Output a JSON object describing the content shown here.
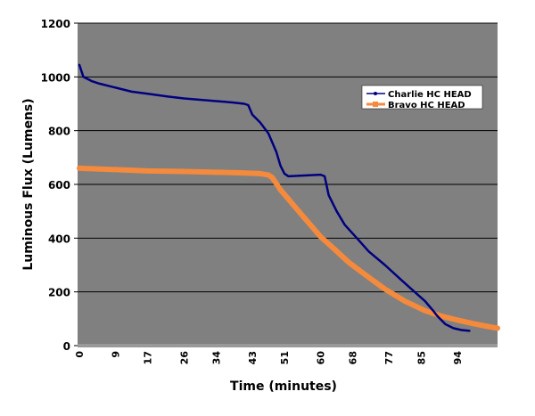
{
  "chart_data": {
    "type": "line",
    "title": "",
    "xlabel": "Time (minutes)",
    "ylabel": "Luminous Flux (Lumens)",
    "xlim": [
      0,
      104
    ],
    "ylim": [
      0,
      1200
    ],
    "x_tick_labels": [
      "0",
      "9",
      "17",
      "26",
      "34",
      "43",
      "51",
      "60",
      "68",
      "77",
      "85",
      "94"
    ],
    "y_tick_labels": [
      "0",
      "200",
      "400",
      "600",
      "800",
      "1000",
      "1200"
    ],
    "grid": "horizontal",
    "legend_position": "top-right",
    "plot_background": "#808080",
    "series": [
      {
        "name": "Charlie HC HEAD",
        "color": "#000080",
        "points": [
          [
            0,
            1045
          ],
          [
            1,
            1000
          ],
          [
            3,
            985
          ],
          [
            5,
            975
          ],
          [
            9,
            960
          ],
          [
            13,
            945
          ],
          [
            17,
            937
          ],
          [
            22,
            927
          ],
          [
            26,
            920
          ],
          [
            30,
            915
          ],
          [
            34,
            910
          ],
          [
            38,
            905
          ],
          [
            41,
            900
          ],
          [
            42,
            895
          ],
          [
            43,
            860
          ],
          [
            45,
            830
          ],
          [
            47,
            790
          ],
          [
            49,
            720
          ],
          [
            50,
            670
          ],
          [
            51,
            640
          ],
          [
            52,
            630
          ],
          [
            56,
            633
          ],
          [
            60,
            636
          ],
          [
            61,
            630
          ],
          [
            62,
            560
          ],
          [
            64,
            500
          ],
          [
            66,
            450
          ],
          [
            69,
            400
          ],
          [
            72,
            350
          ],
          [
            76,
            300
          ],
          [
            80,
            245
          ],
          [
            83,
            205
          ],
          [
            86,
            165
          ],
          [
            88,
            130
          ],
          [
            89,
            110
          ],
          [
            90,
            95
          ],
          [
            91,
            80
          ],
          [
            93,
            65
          ],
          [
            95,
            58
          ],
          [
            97,
            55
          ]
        ]
      },
      {
        "name": "Bravo HC HEAD",
        "color": "#F58A3C",
        "points": [
          [
            0,
            660
          ],
          [
            9,
            655
          ],
          [
            17,
            650
          ],
          [
            26,
            648
          ],
          [
            34,
            645
          ],
          [
            40,
            643
          ],
          [
            45,
            640
          ],
          [
            47,
            635
          ],
          [
            48,
            625
          ],
          [
            50,
            580
          ],
          [
            52,
            545
          ],
          [
            54,
            510
          ],
          [
            56,
            475
          ],
          [
            58,
            440
          ],
          [
            60,
            405
          ],
          [
            63,
            365
          ],
          [
            67,
            310
          ],
          [
            71,
            265
          ],
          [
            76,
            210
          ],
          [
            81,
            165
          ],
          [
            86,
            130
          ],
          [
            90,
            110
          ],
          [
            94,
            95
          ],
          [
            98,
            82
          ],
          [
            101,
            73
          ],
          [
            104,
            65
          ]
        ]
      }
    ]
  }
}
